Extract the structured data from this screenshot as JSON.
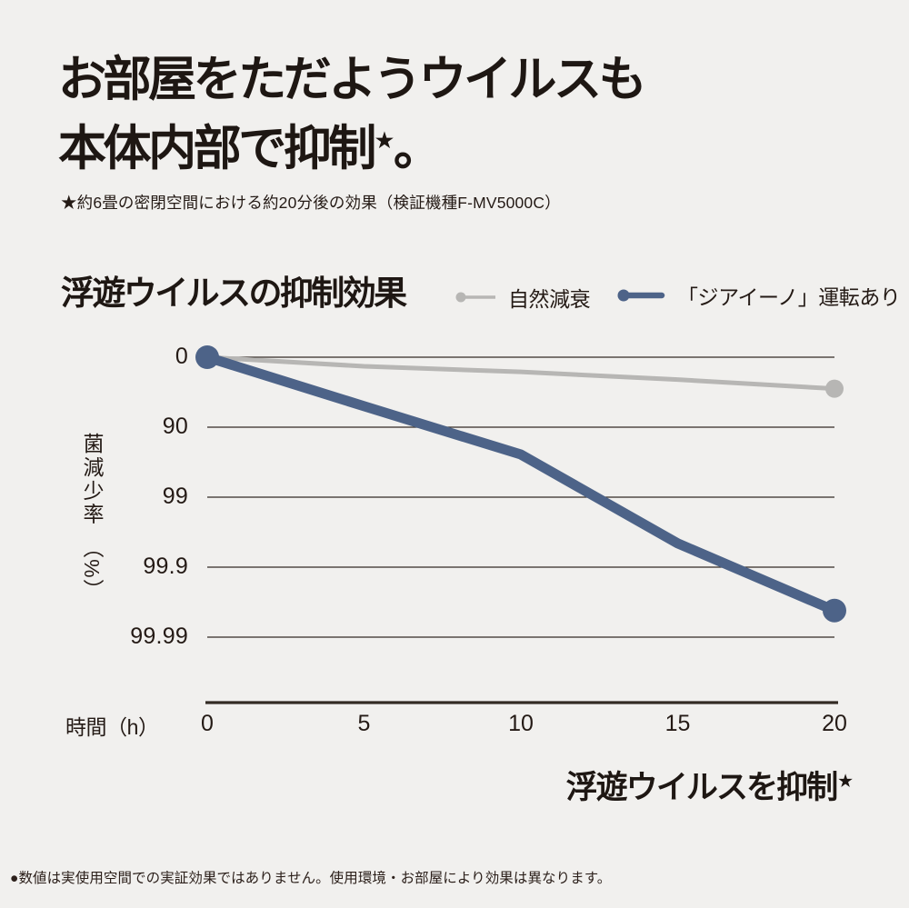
{
  "header": {
    "title_line1": "お部屋をただようウイルスも",
    "title_line2": "本体内部で抑制",
    "title_star": "★",
    "title_period": "。",
    "note": "★約6畳の密閉空間における約20分後の効果（検証機種F-MV5000C）"
  },
  "chart_data": {
    "type": "line",
    "title": "浮遊ウイルスの抑制効果",
    "x_axis_label": "時間（h）",
    "y_axis_label_main": "菌減少率",
    "y_axis_label_unit": "（%）",
    "x_ticks": [
      "0",
      "5",
      "10",
      "15",
      "20"
    ],
    "y_ticks": [
      "0",
      "90",
      "99",
      "99.9",
      "99.99"
    ],
    "x_range": [
      0,
      20
    ],
    "y_axis_type": "log-reduction: each gridline step = one decade (0 → 90 → 99 → 99.9 → 99.99 %)",
    "grid": true,
    "legend_position": "top-right of chart title row",
    "series": [
      {
        "name": "自然減衰",
        "color": "#b7b6b4",
        "x": [
          0,
          5,
          10,
          15,
          20
        ],
        "reduction_decades": [
          0,
          0.13,
          0.21,
          0.32,
          0.45
        ],
        "approx_reduction_percent_estimated": [
          0,
          26,
          38,
          52,
          65
        ]
      },
      {
        "name": "「ジアイーノ」運転あり",
        "color": "#4d6388",
        "x": [
          0,
          5,
          10,
          15,
          20
        ],
        "reduction_decades": [
          0,
          0.7,
          1.39,
          2.66,
          3.62
        ],
        "approx_reduction_percent_estimated": [
          0,
          80,
          96,
          99.8,
          99.98
        ]
      }
    ],
    "colors": {
      "gridline": "#332b24",
      "axis": "#332b24"
    }
  },
  "footer": {
    "emphasis_text": "浮遊ウイルスを抑制",
    "emphasis_star": "★",
    "disclaimer": "●数値は実使用空間での実証効果ではありません。使用環境・お部屋により効果は異なります。"
  }
}
